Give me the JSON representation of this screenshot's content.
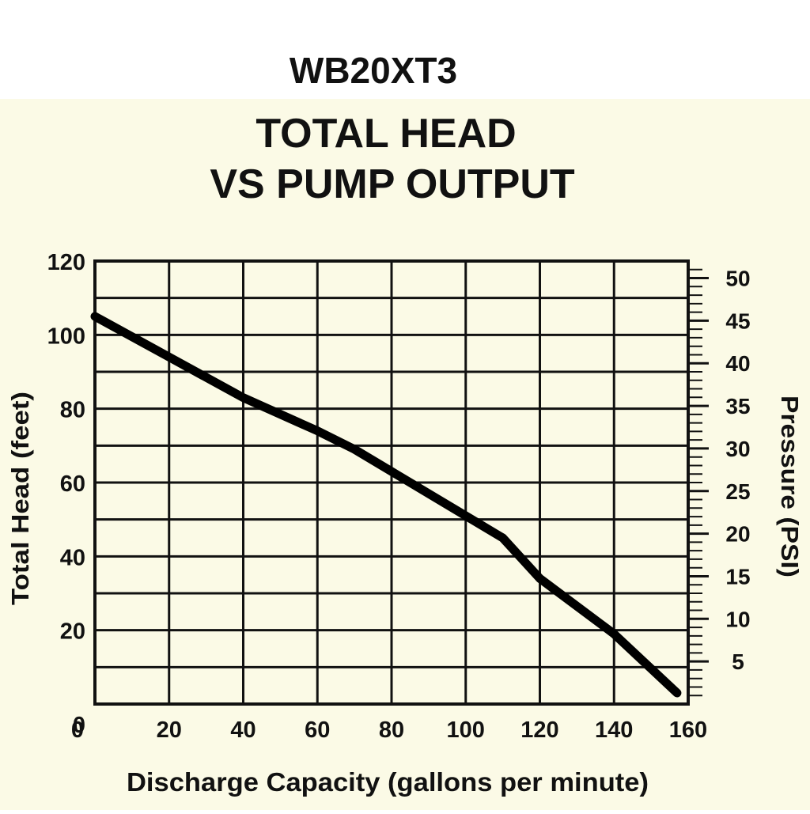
{
  "chart_data": {
    "type": "line",
    "model": "WB20XT3",
    "title": [
      "TOTAL HEAD",
      "VS PUMP OUTPUT"
    ],
    "xlabel": "Discharge Capacity (gallons per minute)",
    "ylabel": "Total Head (feet)",
    "y2label": "Pressure (PSI)",
    "x": [
      0,
      20,
      40,
      60,
      70,
      80,
      100,
      110,
      120,
      140,
      157
    ],
    "series": [
      {
        "color": "#000000",
        "values": [
          105,
          94,
          83,
          74,
          69,
          63,
          51,
          45,
          34,
          19,
          3
        ]
      }
    ],
    "xlim": [
      0,
      160
    ],
    "xticks": [
      0,
      20,
      40,
      60,
      80,
      100,
      120,
      140,
      160
    ],
    "ylim": [
      0,
      120
    ],
    "yticks": [
      0,
      20,
      40,
      60,
      80,
      100,
      120
    ],
    "y_minor_gridlines": [
      10,
      30,
      50,
      70,
      90,
      110
    ],
    "y2lim": [
      0,
      52
    ],
    "y2ticks": [
      5,
      10,
      15,
      20,
      25,
      30,
      35,
      40,
      45,
      50
    ],
    "y2_minor_ticks": [
      1,
      2,
      3,
      4,
      6,
      7,
      8,
      9,
      11,
      12,
      13,
      14,
      16,
      17,
      18,
      19,
      21,
      22,
      23,
      24,
      26,
      27,
      28,
      29,
      31,
      32,
      33,
      34,
      36,
      37,
      38,
      39,
      41,
      42,
      43,
      44,
      46,
      47,
      48,
      49,
      51
    ],
    "grid": true
  }
}
